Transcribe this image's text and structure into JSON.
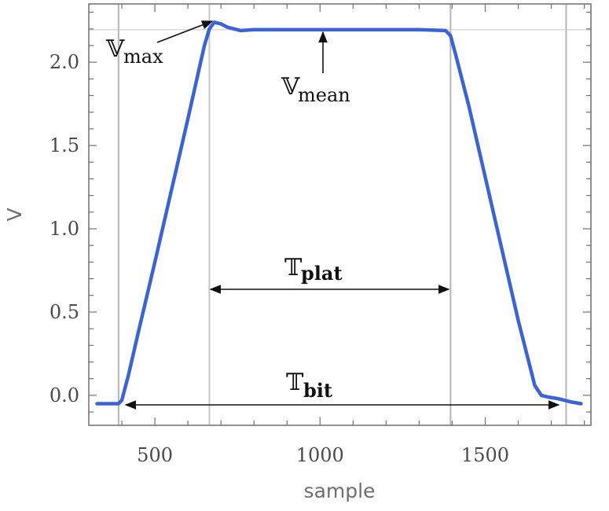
{
  "chart_data": {
    "type": "line",
    "xlabel": "sample",
    "ylabel": "V",
    "xlim": [
      300,
      1820
    ],
    "ylim": [
      -0.18,
      2.35
    ],
    "x_ticks": [
      500,
      1000,
      1500
    ],
    "x_tick_labels": [
      "500",
      "1000",
      "1500"
    ],
    "y_ticks": [
      0.0,
      0.5,
      1.0,
      1.5,
      2.0
    ],
    "y_tick_labels": [
      "0.0",
      "0.5",
      "1.0",
      "1.5",
      "2.0"
    ],
    "grid": false,
    "series": [
      {
        "color": "#3a63d8",
        "x": [
          325,
          360,
          390,
          400,
          420,
          450,
          500,
          550,
          600,
          650,
          665,
          680,
          700,
          720,
          760,
          800,
          900,
          1000,
          1100,
          1200,
          1300,
          1380,
          1395,
          1410,
          1450,
          1500,
          1550,
          1600,
          1650,
          1670,
          1690,
          1720,
          1760,
          1790
        ],
        "y": [
          -0.05,
          -0.05,
          -0.05,
          -0.03,
          0.12,
          0.38,
          0.8,
          1.23,
          1.66,
          2.1,
          2.2,
          2.24,
          2.23,
          2.21,
          2.19,
          2.195,
          2.195,
          2.195,
          2.195,
          2.195,
          2.195,
          2.19,
          2.16,
          2.05,
          1.74,
          1.31,
          0.88,
          0.45,
          0.06,
          0.0,
          -0.01,
          -0.02,
          -0.04,
          -0.05
        ]
      }
    ],
    "reference_lines": {
      "vertical": [
        {
          "x": 390,
          "color": "#b5b5b5"
        },
        {
          "x": 665,
          "color": "#c8c8c8"
        },
        {
          "x": 1395,
          "color": "#b5b5b5"
        },
        {
          "x": 1745,
          "color": "#b5b5b5"
        }
      ],
      "horizontal": [
        {
          "y": 2.195,
          "color": "#c8c8c8"
        }
      ]
    },
    "annotations": [
      {
        "main": "𝕍",
        "sub": "max"
      },
      {
        "main": "𝕍",
        "sub": "mean"
      },
      {
        "main": "𝕋",
        "sub": "plat"
      },
      {
        "main": "𝕋",
        "sub": "bit"
      }
    ]
  }
}
